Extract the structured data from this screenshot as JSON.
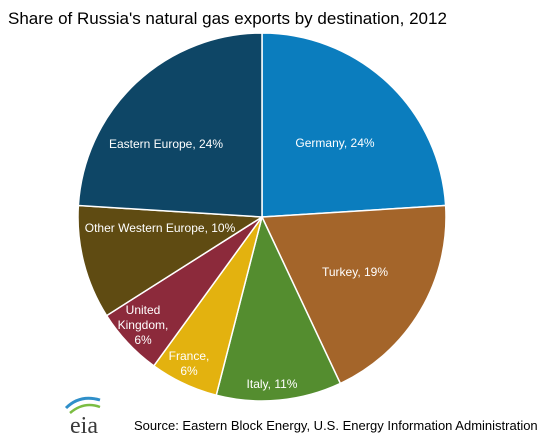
{
  "chart_data": {
    "type": "pie",
    "title": "Share of Russia's natural gas exports by destination, 2012",
    "values": [
      24,
      19,
      11,
      6,
      6,
      10,
      24
    ],
    "value_labels": [
      "Germany, 24%",
      "Turkey, 19%",
      "Italy, 11%",
      "France, 6%",
      "United Kingdom, 6%",
      "Other Western Europe, 10%",
      "Eastern Europe, 24%"
    ],
    "colors": [
      "#0b7dbe",
      "#a4652a",
      "#548d2f",
      "#e3b20f",
      "#8c2a3b",
      "#5f4b12",
      "#0e4666"
    ],
    "source": "Source: Eastern Block Energy, U.S. Energy Information Administration",
    "logo": "eia"
  }
}
